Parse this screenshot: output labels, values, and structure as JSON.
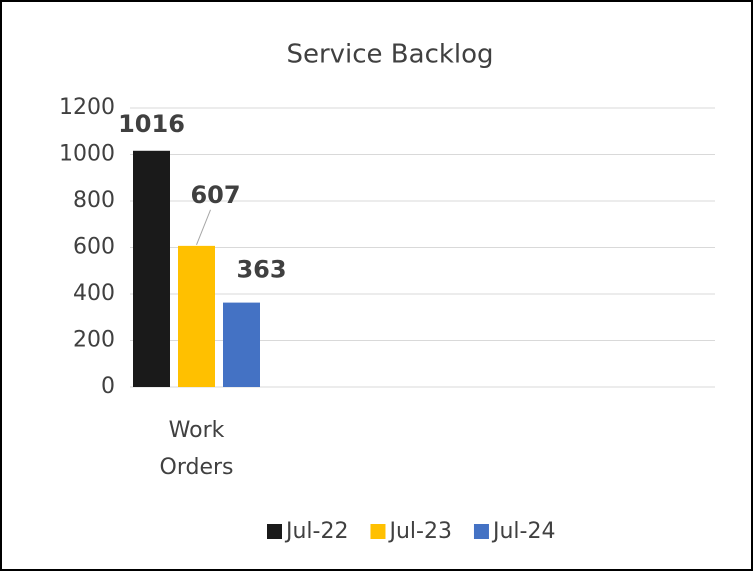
{
  "chart_data": {
    "type": "bar",
    "title": "Service Backlog",
    "categories": [
      "Work Orders"
    ],
    "series": [
      {
        "name": "Jul-22",
        "color": "#1a1a1a",
        "values": [
          1016
        ]
      },
      {
        "name": "Jul-23",
        "color": "#ffc000",
        "values": [
          607
        ]
      },
      {
        "name": "Jul-24",
        "color": "#4472c4",
        "values": [
          363
        ]
      }
    ],
    "ylim": [
      0,
      1200
    ],
    "yticks": [
      0,
      200,
      400,
      600,
      800,
      1000,
      1200
    ],
    "grid": true,
    "legend": "bottom"
  }
}
